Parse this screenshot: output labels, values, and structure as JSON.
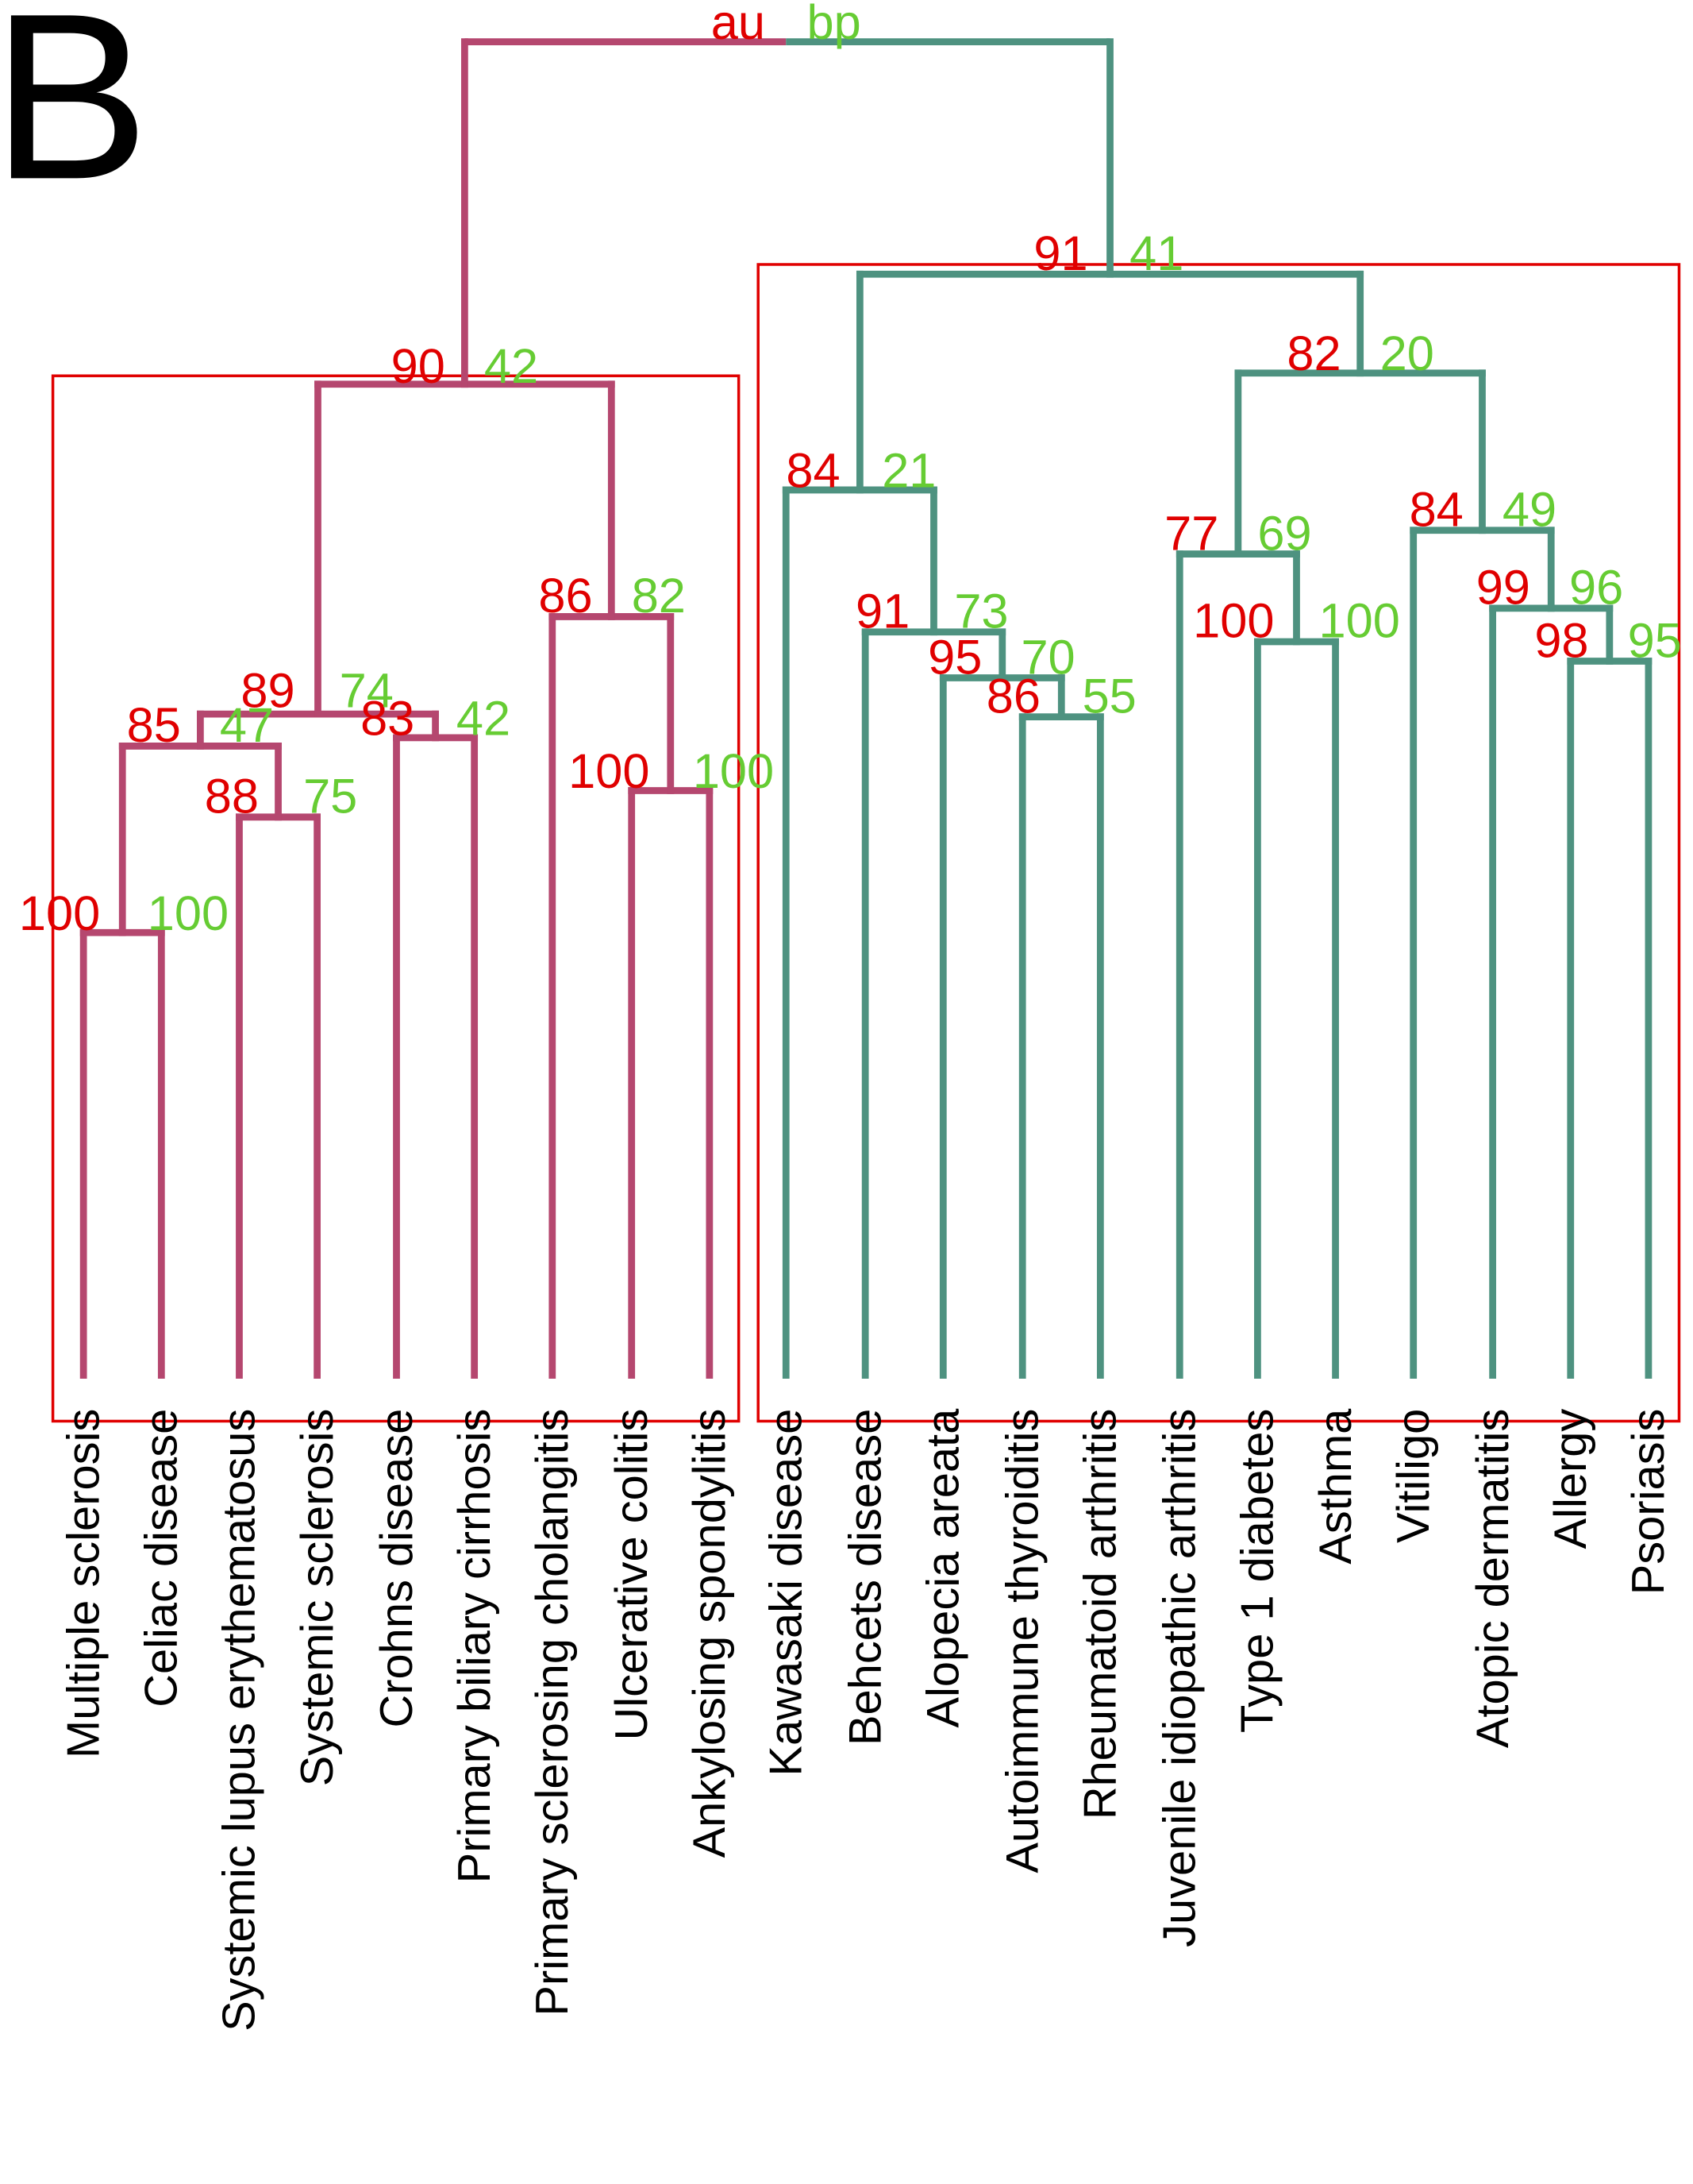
{
  "panel_label": "B",
  "legend": {
    "au_label": "au",
    "bp_label": "bp"
  },
  "colors": {
    "left_cluster": "#B5476F",
    "right_cluster": "#4E9280",
    "au": "#E00000",
    "bp": "#66CC33",
    "box": "#E00000"
  },
  "leaves": [
    "Multiple sclerosis",
    "Celiac disease",
    "Systemic lupus erythematosus",
    "Systemic sclerosis",
    "Crohns disease",
    "Primary biliary cirrhosis",
    "Primary sclerosing cholangitis",
    "Ulcerative colitis",
    "Ankylosing spondylitis",
    "Kawasaki disease",
    "Behcets disease",
    "Alopecia areata",
    "Autoimmune thyroiditis",
    "Rheumatoid arthritis",
    "Juvenile idiopathic arthritis",
    "Type 1 diabetes",
    "Asthma",
    "Vitiligo",
    "Atopic dermatitis",
    "Allergy",
    "Psoriasis"
  ],
  "clusters": [
    {
      "id": "n1",
      "au": "100",
      "bp": "100"
    },
    {
      "id": "n2",
      "au": "88",
      "bp": "75"
    },
    {
      "id": "n3",
      "au": "85",
      "bp": "47"
    },
    {
      "id": "n4",
      "au": "83",
      "bp": "42"
    },
    {
      "id": "n5",
      "au": "89",
      "bp": "74"
    },
    {
      "id": "n6",
      "au": "100",
      "bp": "100"
    },
    {
      "id": "n7",
      "au": "86",
      "bp": "82"
    },
    {
      "id": "n8",
      "au": "90",
      "bp": "42"
    },
    {
      "id": "n9",
      "au": "86",
      "bp": "55"
    },
    {
      "id": "n10",
      "au": "95",
      "bp": "70"
    },
    {
      "id": "n11",
      "au": "91",
      "bp": "73"
    },
    {
      "id": "n12",
      "au": "84",
      "bp": "21"
    },
    {
      "id": "n13",
      "au": "100",
      "bp": "100"
    },
    {
      "id": "n14",
      "au": "77",
      "bp": "69"
    },
    {
      "id": "n15",
      "au": "98",
      "bp": "95"
    },
    {
      "id": "n16",
      "au": "99",
      "bp": "96"
    },
    {
      "id": "n17",
      "au": "84",
      "bp": "49"
    },
    {
      "id": "n18",
      "au": "82",
      "bp": "20"
    },
    {
      "id": "n19",
      "au": "91",
      "bp": "41"
    }
  ]
}
